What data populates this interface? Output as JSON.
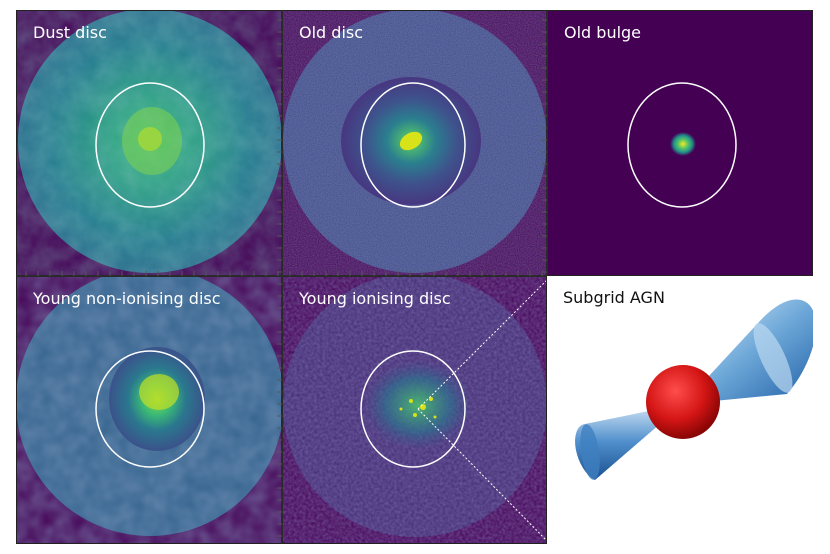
{
  "panels": {
    "dust_disc": {
      "label": "Dust disc"
    },
    "old_disc": {
      "label": "Old disc"
    },
    "old_bulge": {
      "label": "Old bulge"
    },
    "young_non_ionising_disc": {
      "label": "Young non-ionising disc"
    },
    "young_ionising_disc": {
      "label": "Young ionising disc"
    },
    "subgrid_agn": {
      "label": "Subgrid AGN"
    }
  },
  "colors": {
    "background": "#440154",
    "ellipse": "#ffffff",
    "cone": "#2f7fc1",
    "sphere": "#cc1111"
  }
}
